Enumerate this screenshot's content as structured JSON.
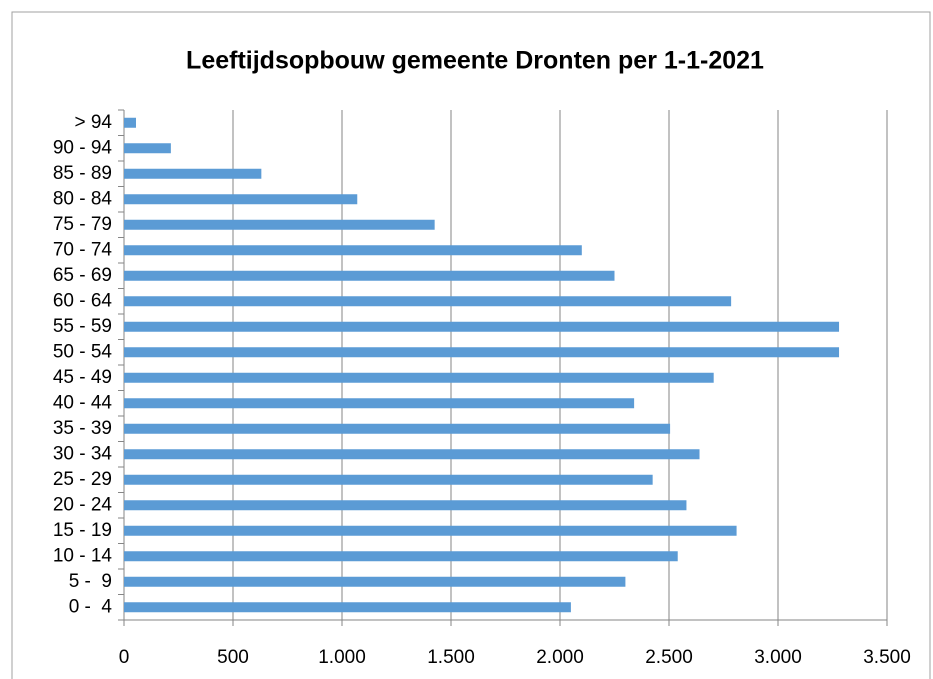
{
  "chart_data": {
    "type": "bar",
    "orientation": "horizontal",
    "title": "Leeftijdsopbouw gemeente Dronten per 1-1-2021",
    "categories": [
      "0 -  4",
      "5 -  9",
      "10 - 14",
      "15 - 19",
      "20 - 24",
      "25 - 29",
      "30 - 34",
      "35 - 39",
      "40 - 44",
      "45 - 49",
      "50 - 54",
      "55 - 59",
      "60 - 64",
      "65 - 69",
      "70 - 74",
      "75 - 79",
      "80 - 84",
      "85 - 89",
      "90 - 94",
      "> 94"
    ],
    "values": [
      2050,
      2300,
      2540,
      2810,
      2580,
      2425,
      2640,
      2505,
      2340,
      2705,
      3280,
      3280,
      2785,
      2250,
      2100,
      1425,
      1070,
      630,
      215,
      55
    ],
    "color": "#5b9bd5",
    "xlim": [
      0,
      3500
    ],
    "xticks": [
      0,
      500,
      {
        "value": 1000,
        "label": "1.000"
      },
      {
        "value": 1500,
        "label": "1.500"
      },
      {
        "value": 2000,
        "label": "2.000"
      },
      {
        "value": 2500,
        "label": "2.500"
      },
      {
        "value": 3000,
        "label": "3.000"
      },
      {
        "value": 3500,
        "label": "3.500"
      }
    ],
    "grid": true
  }
}
